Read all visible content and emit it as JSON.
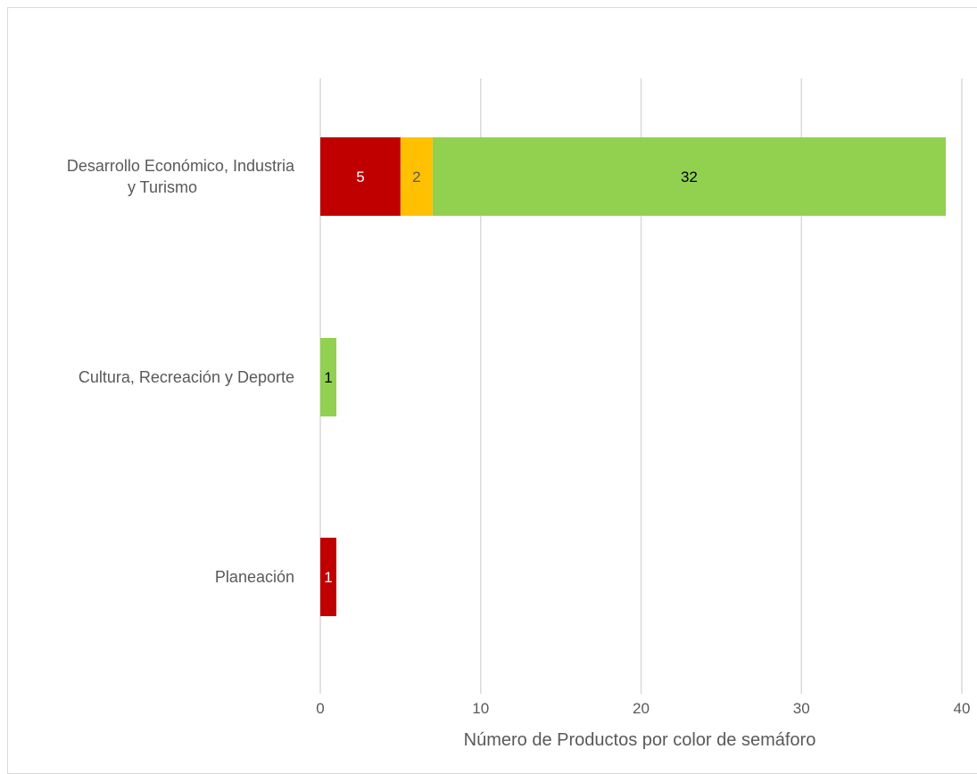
{
  "chart_data": {
    "type": "bar",
    "orientation": "horizontal",
    "stacked": true,
    "title": "",
    "xlabel": "Número de Productos por color de semáforo",
    "ylabel": "",
    "xlim": [
      0,
      40
    ],
    "x_ticks": [
      0,
      10,
      20,
      30,
      40
    ],
    "grid": true,
    "legend": "none",
    "categories": [
      [
        "Desarrollo Económico, Industria",
        "y Turismo"
      ],
      [
        "Cultura, Recreación y Deporte"
      ],
      [
        "Planeación"
      ]
    ],
    "series": [
      {
        "color": "#c00000",
        "label_color": "#ffffff",
        "values": [
          5,
          0,
          1
        ]
      },
      {
        "color": "#ffc000",
        "label_color": "#595959",
        "values": [
          2,
          0,
          0
        ]
      },
      {
        "color": "#92d050",
        "label_color": "#000000",
        "values": [
          32,
          1,
          0
        ]
      }
    ]
  }
}
